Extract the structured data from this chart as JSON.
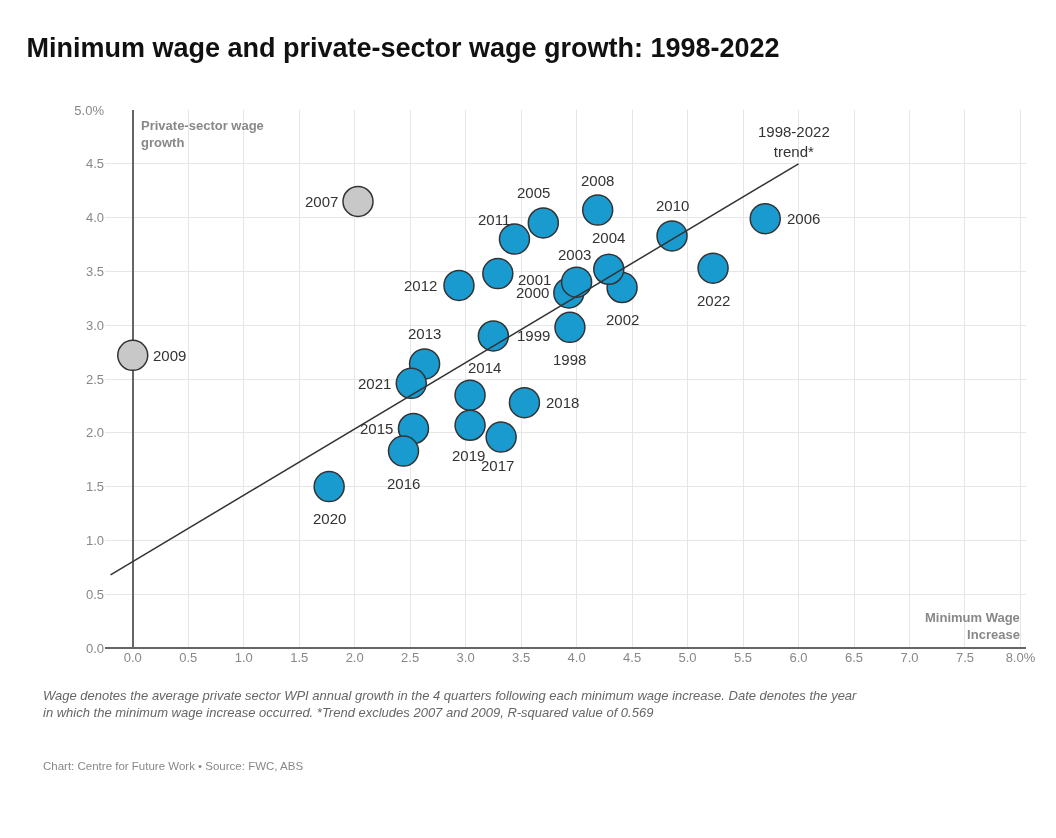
{
  "chart_data": {
    "type": "scatter",
    "title": "Minimum wage and private-sector wage growth: 1998-2022",
    "xlabel": "Minimum Wage Increase",
    "ylabel": "Private-sector wage growth",
    "xlim": [
      -0.25,
      8.05
    ],
    "ylim": [
      0,
      5
    ],
    "xticks": [
      {
        "value": 0,
        "label": "0.0"
      },
      {
        "value": 0.5,
        "label": "0.5"
      },
      {
        "value": 1,
        "label": "1.0"
      },
      {
        "value": 1.5,
        "label": "1.5"
      },
      {
        "value": 2,
        "label": "2.0"
      },
      {
        "value": 2.5,
        "label": "2.5"
      },
      {
        "value": 3,
        "label": "3.0"
      },
      {
        "value": 3.5,
        "label": "3.5"
      },
      {
        "value": 4,
        "label": "4.0"
      },
      {
        "value": 4.5,
        "label": "4.5"
      },
      {
        "value": 5,
        "label": "5.0"
      },
      {
        "value": 5.5,
        "label": "5.5"
      },
      {
        "value": 6,
        "label": "6.0"
      },
      {
        "value": 6.5,
        "label": "6.5"
      },
      {
        "value": 7,
        "label": "7.0"
      },
      {
        "value": 7.5,
        "label": "7.5"
      },
      {
        "value": 8,
        "label": "8.0%"
      }
    ],
    "yticks": [
      {
        "value": 0,
        "label": "0.0"
      },
      {
        "value": 0.5,
        "label": "0.5"
      },
      {
        "value": 1,
        "label": "1.0"
      },
      {
        "value": 1.5,
        "label": "1.5"
      },
      {
        "value": 2,
        "label": "2.0"
      },
      {
        "value": 2.5,
        "label": "2.5"
      },
      {
        "value": 3,
        "label": "3.0"
      },
      {
        "value": 3.5,
        "label": "3.5"
      },
      {
        "value": 4,
        "label": "4.0"
      },
      {
        "value": 4.5,
        "label": "4.5"
      },
      {
        "value": 5,
        "label": "5.0%"
      }
    ],
    "grid": true,
    "marker": "circle",
    "series": [
      {
        "color": "#1a9bd0",
        "x": [
          3.94,
          3.25,
          3.93,
          3.29,
          4.41,
          4.0,
          4.29,
          3.7,
          5.7,
          4.19,
          4.86,
          3.44,
          2.94,
          2.63,
          3.04,
          2.53,
          2.44,
          3.32,
          3.53,
          3.04,
          1.77,
          2.51,
          5.23
        ],
        "values": [
          2.98,
          2.9,
          3.3,
          3.48,
          3.35,
          3.4,
          3.52,
          3.95,
          3.99,
          4.07,
          3.83,
          3.8,
          3.37,
          2.64,
          2.35,
          2.04,
          1.83,
          1.96,
          2.28,
          2.07,
          1.5,
          2.46,
          3.53
        ]
      },
      {
        "color": "#c8c8c8",
        "x": [
          2.03,
          0
        ],
        "values": [
          4.15,
          2.72
        ]
      },
      {
        "type": "line",
        "color": "#333333",
        "x": [
          -0.2,
          6.0
        ],
        "values": [
          0.68,
          4.5
        ],
        "marker": "none"
      }
    ],
    "annotations": [
      {
        "text": "1998",
        "x": 3.94,
        "y": 2.98
      },
      {
        "text": "1999",
        "x": 3.25,
        "y": 2.9
      },
      {
        "text": "2000",
        "x": 3.93,
        "y": 3.3
      },
      {
        "text": "2001",
        "x": 3.29,
        "y": 3.48
      },
      {
        "text": "2002",
        "x": 4.41,
        "y": 3.35
      },
      {
        "text": "2003",
        "x": 4.0,
        "y": 3.4
      },
      {
        "text": "2004",
        "x": 4.29,
        "y": 3.52
      },
      {
        "text": "2005",
        "x": 3.7,
        "y": 3.95
      },
      {
        "text": "2006",
        "x": 5.7,
        "y": 3.99
      },
      {
        "text": "2008",
        "x": 4.19,
        "y": 4.07
      },
      {
        "text": "2010",
        "x": 4.86,
        "y": 3.83
      },
      {
        "text": "2011",
        "x": 3.44,
        "y": 3.8
      },
      {
        "text": "2012",
        "x": 2.94,
        "y": 3.37
      },
      {
        "text": "2013",
        "x": 2.63,
        "y": 2.64
      },
      {
        "text": "2014",
        "x": 3.04,
        "y": 2.35
      },
      {
        "text": "2015",
        "x": 2.53,
        "y": 2.04
      },
      {
        "text": "2016",
        "x": 2.44,
        "y": 1.83
      },
      {
        "text": "2017",
        "x": 3.32,
        "y": 1.96
      },
      {
        "text": "2018",
        "x": 3.53,
        "y": 2.28
      },
      {
        "text": "2019",
        "x": 3.04,
        "y": 2.07
      },
      {
        "text": "2020",
        "x": 1.77,
        "y": 1.5
      },
      {
        "text": "2021",
        "x": 2.51,
        "y": 2.46
      },
      {
        "text": "2022",
        "x": 5.23,
        "y": 3.53
      },
      {
        "text": "2007",
        "x": 2.03,
        "y": 4.15
      },
      {
        "text": "2009",
        "x": 0,
        "y": 2.72
      },
      {
        "text": "1998-2022\ntrend*",
        "x": 6.0,
        "y": 4.5
      },
      "Wage denotes the average private sector WPI annual growth in the 4 quarters following each minimum wage increase. Date denotes the year in which the minimum wage increase occurred. *Trend excludes 2007 and 2009, R-squared value of 0.569",
      "Chart: Centre for Future Work • Source: FWC, ABS"
    ]
  }
}
